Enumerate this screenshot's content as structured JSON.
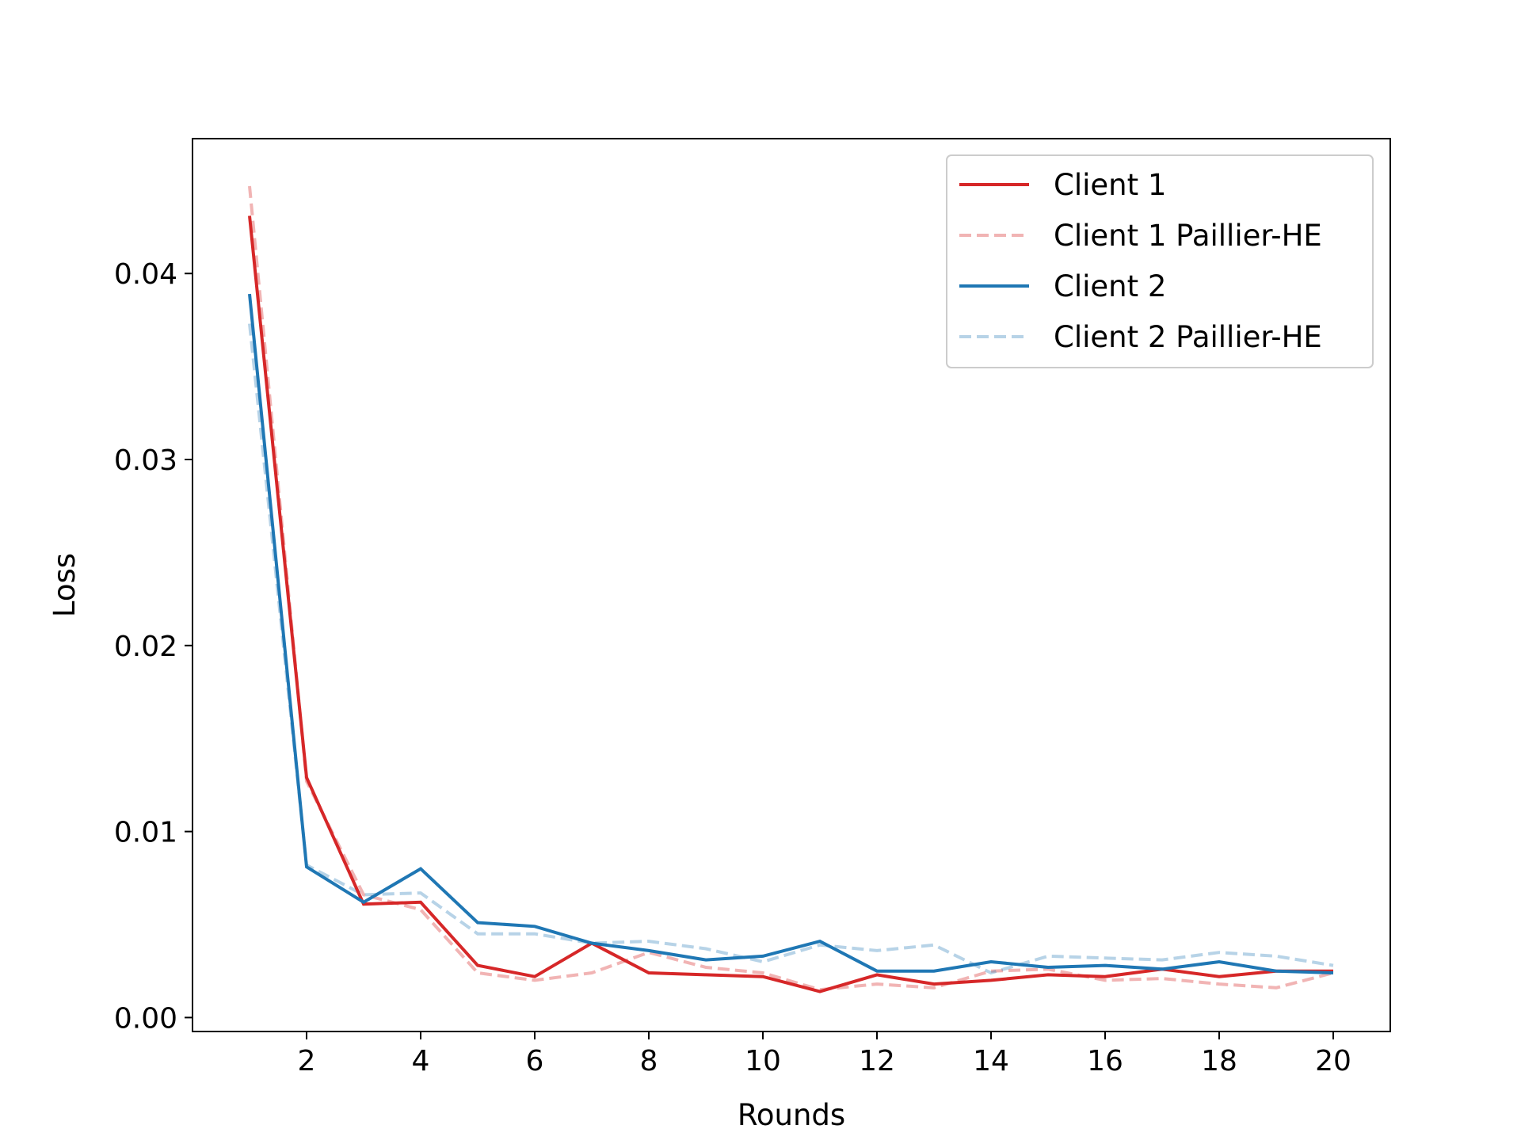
{
  "chart_data": {
    "type": "line",
    "title": "",
    "xlabel": "Rounds",
    "ylabel": "Loss",
    "xlim": [
      0.0,
      21.0
    ],
    "ylim": [
      -0.00075,
      0.04725
    ],
    "xticks": [
      2,
      4,
      6,
      8,
      10,
      12,
      14,
      16,
      18,
      20
    ],
    "xtick_labels": [
      "2",
      "4",
      "6",
      "8",
      "10",
      "12",
      "14",
      "16",
      "18",
      "20"
    ],
    "yticks": [
      0.0,
      0.01,
      0.02,
      0.03,
      0.04
    ],
    "ytick_labels": [
      "0.00",
      "0.01",
      "0.02",
      "0.03",
      "0.04"
    ],
    "grid": false,
    "legend_position": "top-right",
    "x": [
      1,
      2,
      3,
      4,
      5,
      6,
      7,
      8,
      9,
      10,
      11,
      12,
      13,
      14,
      15,
      16,
      17,
      18,
      19,
      20
    ],
    "series": [
      {
        "name": "Client 1",
        "color": "#d62728",
        "style": "solid",
        "opacity": 1,
        "values": [
          0.0431,
          0.0129,
          0.0061,
          0.0062,
          0.0028,
          0.0022,
          0.004,
          0.0024,
          0.0023,
          0.0022,
          0.0014,
          0.0023,
          0.0018,
          0.002,
          0.0023,
          0.0022,
          0.0026,
          0.0022,
          0.0025,
          0.0025
        ]
      },
      {
        "name": "Client 1 Paillier-HE",
        "color": "#d62728",
        "style": "dashed",
        "opacity": 0.35,
        "values": [
          0.0447,
          0.0127,
          0.0066,
          0.0058,
          0.0024,
          0.002,
          0.0024,
          0.0035,
          0.0027,
          0.0024,
          0.0015,
          0.0018,
          0.0016,
          0.0025,
          0.0026,
          0.002,
          0.0021,
          0.0018,
          0.0016,
          0.0024
        ]
      },
      {
        "name": "Client 2",
        "color": "#1f77b4",
        "style": "solid",
        "opacity": 1,
        "values": [
          0.0389,
          0.0081,
          0.0062,
          0.008,
          0.0051,
          0.0049,
          0.004,
          0.0036,
          0.0031,
          0.0033,
          0.0041,
          0.0025,
          0.0025,
          0.003,
          0.0027,
          0.0028,
          0.0026,
          0.003,
          0.0025,
          0.0024
        ]
      },
      {
        "name": "Client 2 Paillier-HE",
        "color": "#1f77b4",
        "style": "dashed",
        "opacity": 0.32,
        "values": [
          0.0373,
          0.0082,
          0.0066,
          0.0067,
          0.0045,
          0.0045,
          0.004,
          0.0041,
          0.0037,
          0.003,
          0.0039,
          0.0036,
          0.0039,
          0.0024,
          0.0033,
          0.0032,
          0.0031,
          0.0035,
          0.0033,
          0.0028
        ]
      }
    ]
  }
}
